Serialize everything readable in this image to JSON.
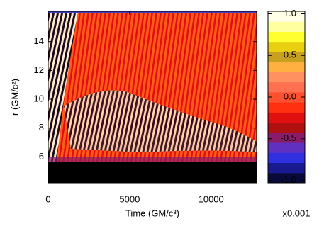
{
  "chart_data": {
    "type": "heatmap",
    "xlabel": "Time (GM/c³)",
    "ylabel": "r (GM/c²)",
    "xlim": [
      0,
      12800
    ],
    "xticks": [
      0,
      5000,
      10000
    ],
    "ylim": [
      4.2,
      16.1
    ],
    "yticks": [
      6,
      8,
      10,
      12,
      14
    ],
    "clim": [
      -1.03,
      1.03
    ],
    "cticks": [
      {
        "value": 1.0,
        "label": "1.0"
      },
      {
        "value": 0.5,
        "label": "0.5"
      },
      {
        "value": 0.0,
        "label": "0.0"
      },
      {
        "value": -0.5,
        "label": "-0.5"
      },
      {
        "value": -1.0,
        "label": "-1.0"
      }
    ],
    "colorbar_note": "x0.001",
    "colormap": [
      "#0a0a3a",
      "#1a1a90",
      "#3030e0",
      "#6030c0",
      "#8a1a6a",
      "#b01010",
      "#e01010",
      "#ff3010",
      "#ff5030",
      "#ff7050",
      "#ff9060",
      "#ffb040",
      "#c8a020",
      "#e8d010",
      "#ffff30",
      "#ffffa0",
      "#ffffe8"
    ]
  }
}
